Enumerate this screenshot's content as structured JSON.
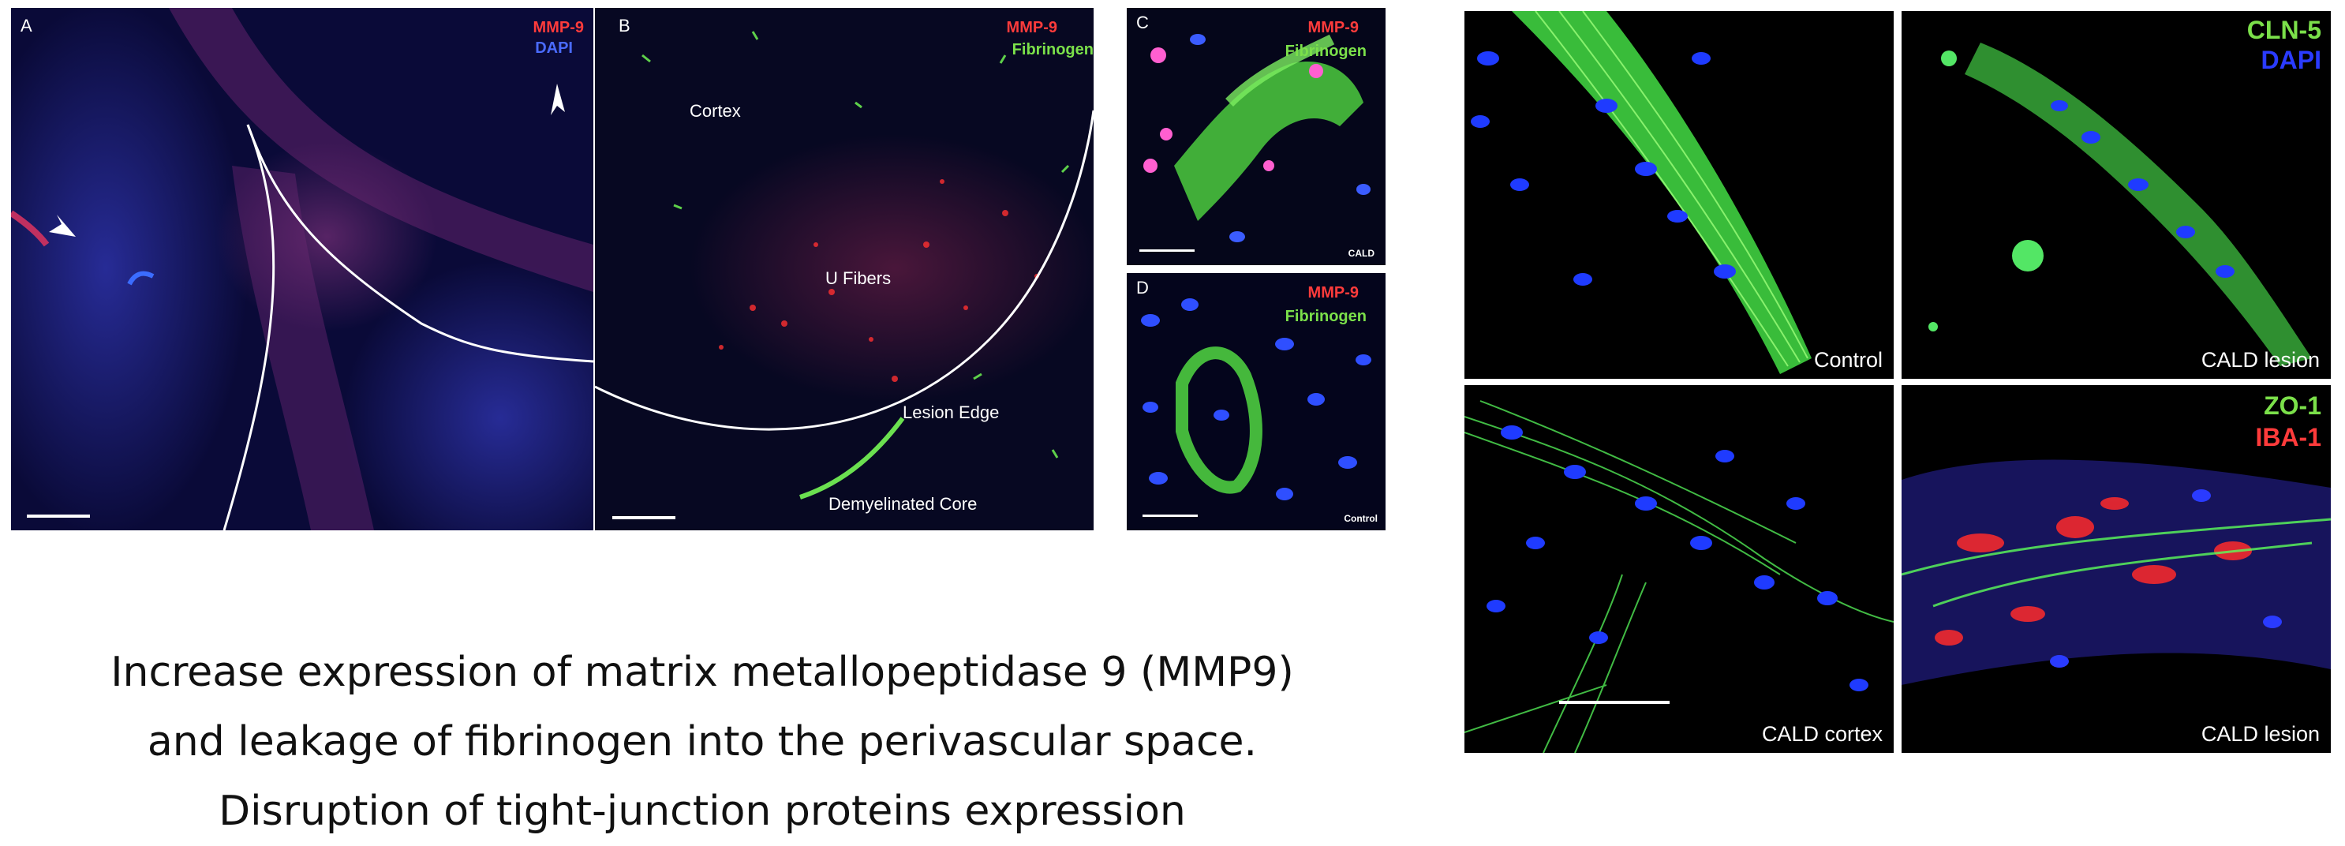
{
  "panels": {
    "a": {
      "letter": "A",
      "markers": [
        "MMP-9",
        "DAPI"
      ]
    },
    "b": {
      "letter": "B",
      "markers": [
        "MMP-9",
        "Fibrinogen"
      ],
      "regions": {
        "cortex": "Cortex",
        "u_fibers": "U Fibers",
        "lesion_edge": "Lesion Edge",
        "core": "Demyelinated Core"
      }
    },
    "c": {
      "letter": "C",
      "markers": [
        "MMP-9",
        "Fibrinogen"
      ],
      "tag": "CALD"
    },
    "d": {
      "letter": "D",
      "markers": [
        "MMP-9",
        "Fibrinogen"
      ],
      "tag": "Control"
    }
  },
  "grid": {
    "top_left": {
      "label": "Control"
    },
    "top_right": {
      "label": "CALD lesion",
      "markers": [
        "CLN-5",
        "DAPI"
      ]
    },
    "bottom_left": {
      "label": "CALD cortex"
    },
    "bottom_right": {
      "label": "CALD lesion",
      "markers": [
        "ZO-1",
        "IBA-1"
      ]
    }
  },
  "caption": [
    "Increase expression of matrix metallopeptidase 9 (MMP9)",
    "and leakage of fibrinogen into the perivascular space.",
    "Disruption of tight-junction proteins expression"
  ],
  "colors": {
    "mmp9": "#ff3b3b",
    "dapi": "#4a6bff",
    "fibrinogen": "#7be04a",
    "background": "#05061a"
  }
}
